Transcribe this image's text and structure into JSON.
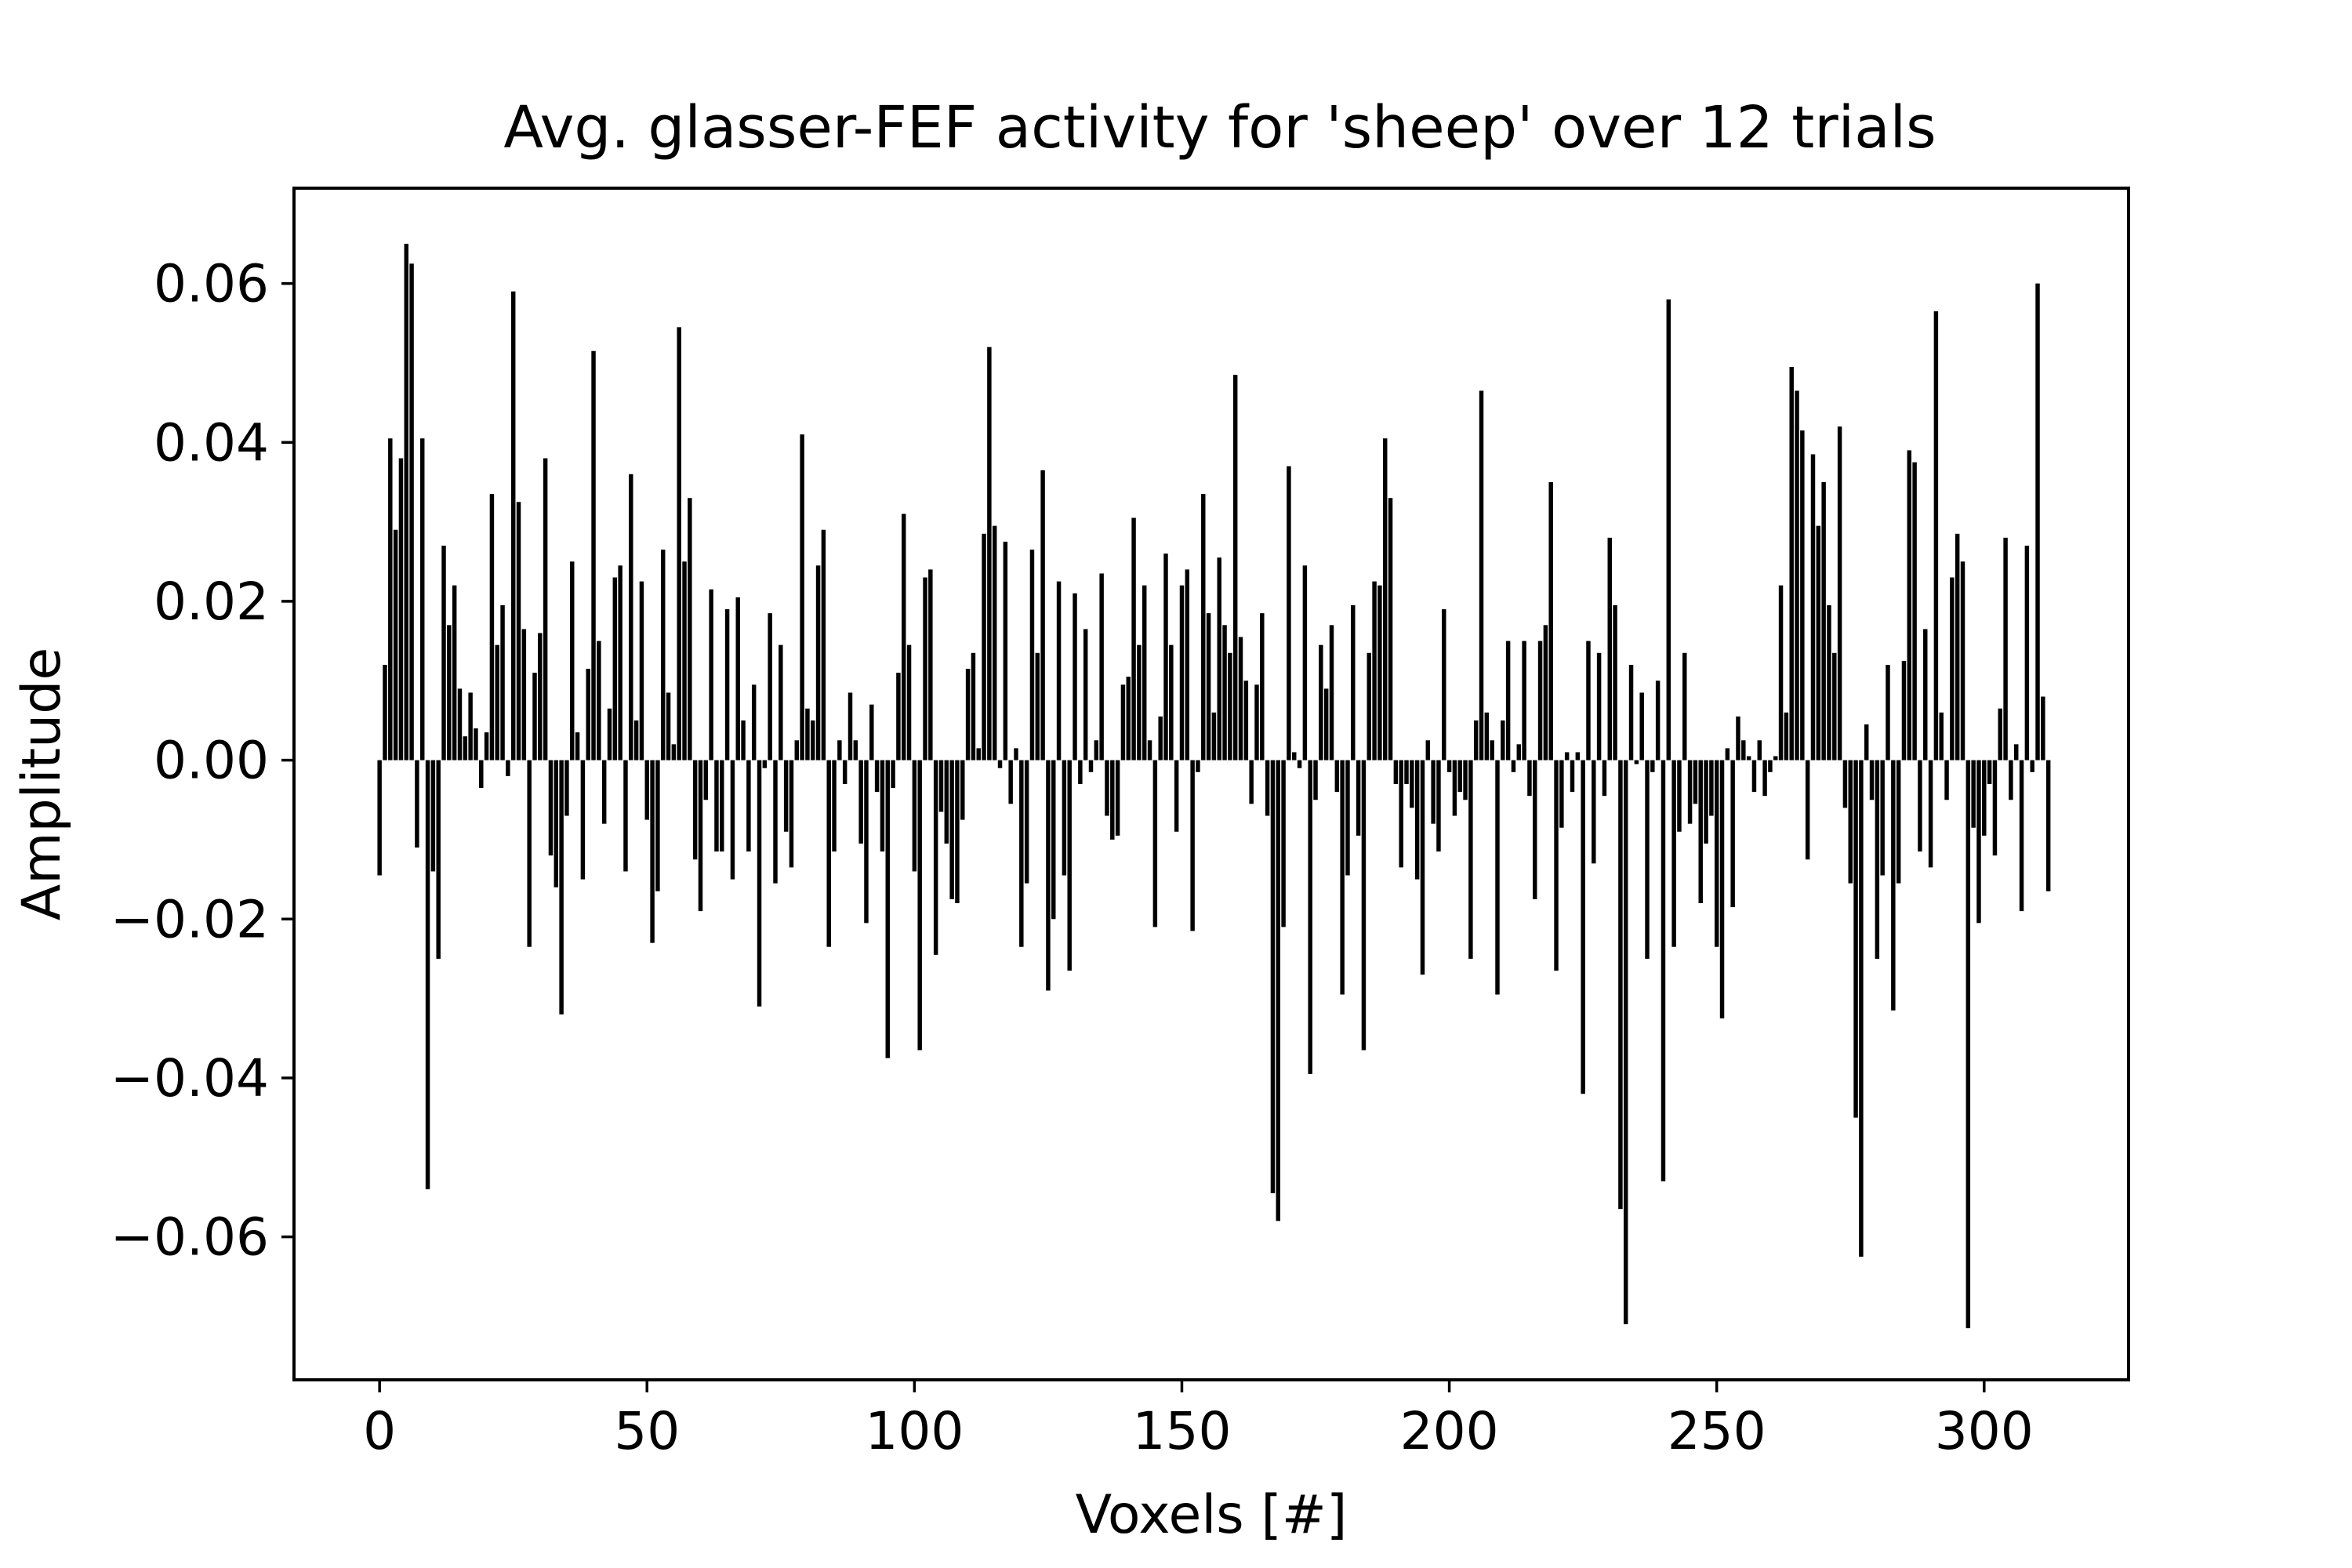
{
  "chart_data": {
    "type": "bar",
    "title": "Avg. glasser-FEF activity for 'sheep' over 12 trials",
    "xlabel": "Voxels [#]",
    "ylabel": "Amplitude",
    "xlim": [
      -16,
      327
    ],
    "ylim": [
      -0.078,
      0.072
    ],
    "xticks": [
      0,
      50,
      100,
      150,
      200,
      250,
      300
    ],
    "xtick_labels": [
      "0",
      "50",
      "100",
      "150",
      "200",
      "250",
      "300"
    ],
    "yticks": [
      -0.06,
      -0.04,
      -0.02,
      0.0,
      0.02,
      0.04,
      0.06
    ],
    "ytick_labels": [
      "−0.06",
      "−0.04",
      "−0.02",
      "0.00",
      "0.02",
      "0.04",
      "0.06"
    ],
    "grid": false,
    "bar_color": "#000000",
    "x_start": 0,
    "values": [
      -0.0145,
      0.012,
      0.0405,
      0.029,
      0.038,
      0.065,
      0.0625,
      -0.011,
      0.0405,
      -0.054,
      -0.014,
      -0.025,
      0.027,
      0.017,
      0.022,
      0.009,
      0.003,
      0.0085,
      0.004,
      -0.0035,
      0.0035,
      0.0335,
      0.0145,
      0.0195,
      -0.002,
      0.059,
      0.0325,
      0.0165,
      -0.0235,
      0.011,
      0.016,
      0.038,
      -0.012,
      -0.016,
      -0.032,
      -0.007,
      0.025,
      0.0035,
      -0.015,
      0.0115,
      0.0515,
      0.015,
      -0.008,
      0.0065,
      0.023,
      0.0245,
      -0.014,
      0.036,
      0.005,
      0.0225,
      -0.0075,
      -0.023,
      -0.0165,
      0.0265,
      0.0085,
      0.002,
      0.0545,
      0.025,
      0.033,
      -0.0125,
      -0.019,
      -0.005,
      0.0215,
      -0.0115,
      -0.0115,
      0.019,
      -0.015,
      0.0205,
      0.005,
      -0.0115,
      0.0095,
      -0.031,
      -0.001,
      0.0185,
      -0.0155,
      0.0145,
      -0.009,
      -0.0135,
      0.0025,
      0.041,
      0.0065,
      0.005,
      0.0245,
      0.029,
      -0.0235,
      -0.0115,
      0.0025,
      -0.003,
      0.0085,
      0.0025,
      -0.0105,
      -0.0205,
      0.007,
      -0.004,
      -0.0115,
      -0.0375,
      -0.0035,
      0.011,
      0.031,
      0.0145,
      -0.014,
      -0.0365,
      0.023,
      0.024,
      -0.0245,
      -0.0065,
      -0.0105,
      -0.0175,
      -0.018,
      -0.0075,
      0.0115,
      0.0135,
      0.0015,
      0.0285,
      0.052,
      0.0295,
      -0.001,
      0.0275,
      -0.0055,
      0.0015,
      -0.0235,
      -0.0155,
      0.0265,
      0.0135,
      0.0365,
      -0.029,
      -0.02,
      0.0225,
      -0.0145,
      -0.0265,
      0.021,
      -0.003,
      0.0165,
      -0.0015,
      0.0025,
      0.0235,
      -0.007,
      -0.01,
      -0.0095,
      0.0095,
      0.0105,
      0.0305,
      0.0145,
      0.022,
      0.0025,
      -0.021,
      0.0055,
      0.026,
      0.0145,
      -0.009,
      0.022,
      0.024,
      -0.0215,
      -0.0015,
      0.0335,
      0.0185,
      0.006,
      0.0255,
      0.017,
      0.0135,
      0.0485,
      0.0155,
      0.01,
      -0.0055,
      0.0095,
      0.0185,
      -0.007,
      -0.0545,
      -0.058,
      -0.021,
      0.037,
      0.001,
      -0.001,
      0.0245,
      -0.0395,
      -0.005,
      0.0145,
      0.009,
      0.017,
      -0.004,
      -0.0295,
      -0.0145,
      0.0195,
      -0.0095,
      -0.0365,
      0.0135,
      0.0225,
      0.022,
      0.0405,
      0.033,
      -0.003,
      -0.0135,
      -0.003,
      -0.006,
      -0.015,
      -0.027,
      0.0025,
      -0.008,
      -0.0115,
      0.019,
      -0.0015,
      -0.007,
      -0.004,
      -0.005,
      -0.025,
      0.005,
      0.0465,
      0.006,
      0.0025,
      -0.0295,
      0.005,
      0.015,
      -0.0015,
      0.002,
      0.015,
      -0.0045,
      -0.0175,
      0.015,
      0.017,
      0.035,
      -0.0265,
      -0.0085,
      0.001,
      -0.004,
      0.001,
      -0.042,
      0.015,
      -0.013,
      0.0135,
      -0.0045,
      0.028,
      0.0195,
      -0.0565,
      -0.071,
      0.012,
      -0.0005,
      0.0085,
      -0.025,
      -0.0015,
      0.01,
      -0.053,
      0.058,
      -0.0235,
      -0.009,
      0.0135,
      -0.008,
      -0.0055,
      -0.018,
      -0.0105,
      -0.007,
      -0.0235,
      -0.0325,
      0.0015,
      -0.0185,
      0.0055,
      0.0025,
      0.0005,
      -0.004,
      0.0025,
      -0.0045,
      -0.0015,
      0.0005,
      0.022,
      0.006,
      0.0495,
      0.0465,
      0.0415,
      -0.0125,
      0.0385,
      0.0295,
      0.035,
      0.0195,
      0.0135,
      0.042,
      -0.006,
      -0.0155,
      -0.045,
      -0.0625,
      0.0045,
      -0.005,
      -0.025,
      -0.0145,
      0.012,
      -0.0315,
      -0.0155,
      0.0125,
      0.039,
      0.0375,
      -0.0115,
      0.0165,
      -0.0135,
      0.0565,
      0.006,
      -0.005,
      0.023,
      0.0285,
      0.025,
      -0.0715,
      -0.0085,
      -0.0205,
      -0.0095,
      -0.003,
      -0.012,
      0.0065,
      0.028,
      -0.005,
      0.002,
      -0.019,
      0.027,
      -0.0015,
      0.06,
      0.008,
      -0.0165
    ]
  }
}
